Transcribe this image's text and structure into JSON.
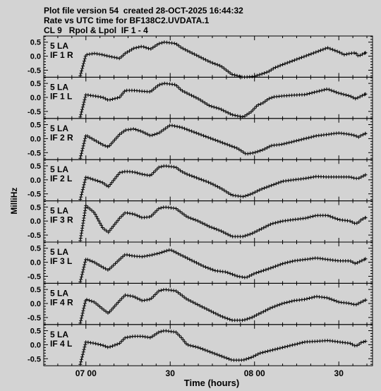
{
  "header": {
    "line1": "Plot file version 54  created 28-OCT-2025 16:44:32",
    "line2": "Rate vs UTC time for BF138C2.UVDATA.1",
    "line3": "CL 9   Rpol & Lpol  IF 1 - 4"
  },
  "chart_data": {
    "type": "scatter",
    "marker": "+",
    "ylabel": "MilliHz",
    "xlabel": "Time (hours)",
    "x_ticks": [
      "07 00",
      "30",
      "08 00",
      "30"
    ],
    "x_tick_values_min": [
      420,
      450,
      480,
      510
    ],
    "xlim_min": [
      405,
      522
    ],
    "ylim": [
      -0.75,
      0.72
    ],
    "y_ticks": [
      "0.5",
      "0.0",
      "-0.5"
    ],
    "panels": [
      {
        "antenna": "5 LA",
        "label": "IF 1 R",
        "t": [
          418,
          420,
          423,
          426,
          428,
          432,
          434,
          437,
          440,
          443,
          446,
          448,
          452,
          454,
          456,
          460,
          464,
          468,
          472,
          476,
          480,
          483,
          485,
          487,
          490,
          494,
          498,
          502,
          506,
          510,
          512,
          514,
          516,
          517,
          518,
          519.5
        ],
        "y": [
          -0.7,
          0.05,
          0.1,
          0.05,
          0.0,
          -0.08,
          0.1,
          0.28,
          0.35,
          0.25,
          0.45,
          0.5,
          0.45,
          0.3,
          0.2,
          0.0,
          -0.2,
          -0.35,
          -0.65,
          -0.75,
          -0.72,
          -0.62,
          -0.55,
          -0.42,
          -0.3,
          -0.15,
          0.0,
          0.15,
          0.3,
          0.15,
          0.05,
          0.1,
          0.12,
          0.0,
          0.05,
          0.12
        ]
      },
      {
        "antenna": "5 LA",
        "label": "IF 1 L",
        "t": [
          418,
          420,
          423,
          426,
          428,
          432,
          434,
          437,
          440,
          443,
          446,
          448,
          452,
          454,
          456,
          460,
          464,
          468,
          472,
          476,
          479,
          481,
          483,
          485,
          487,
          490,
          494,
          498,
          502,
          506,
          510,
          512,
          514,
          516,
          517,
          518,
          519.5
        ],
        "y": [
          -0.7,
          0.1,
          0.05,
          0.0,
          -0.1,
          0.0,
          0.25,
          0.25,
          0.22,
          0.2,
          0.45,
          0.5,
          0.45,
          0.25,
          0.15,
          -0.05,
          -0.3,
          -0.42,
          -0.62,
          -0.7,
          -0.5,
          -0.28,
          -0.2,
          -0.05,
          0.02,
          0.05,
          0.08,
          0.1,
          0.2,
          0.3,
          0.15,
          0.1,
          0.05,
          -0.05,
          0.0,
          0.05,
          0.12
        ]
      },
      {
        "antenna": "5 LA",
        "label": "IF 2 R",
        "t": [
          418,
          420,
          423,
          426,
          428,
          432,
          434,
          437,
          440,
          443,
          446,
          450,
          454,
          458,
          462,
          466,
          470,
          474,
          477,
          480,
          483,
          486,
          490,
          494,
          498,
          502,
          506,
          510,
          514,
          516,
          517,
          518,
          519.5
        ],
        "y": [
          -0.7,
          0.12,
          -0.05,
          -0.22,
          -0.3,
          0.15,
          0.3,
          0.35,
          0.25,
          0.1,
          0.2,
          0.48,
          0.4,
          0.25,
          0.1,
          -0.05,
          -0.2,
          -0.35,
          -0.55,
          -0.5,
          -0.4,
          -0.25,
          -0.2,
          -0.1,
          0.0,
          0.1,
          0.15,
          0.2,
          0.15,
          0.1,
          0.05,
          0.12,
          0.18
        ]
      },
      {
        "antenna": "5 LA",
        "label": "IF 2 L",
        "t": [
          418,
          420,
          423,
          426,
          428,
          432,
          434,
          437,
          440,
          443,
          446,
          448,
          452,
          454,
          456,
          460,
          464,
          468,
          472,
          476,
          479,
          482,
          486,
          490,
          494,
          498,
          502,
          506,
          510,
          514,
          516,
          517,
          518,
          519.5
        ],
        "y": [
          -0.7,
          0.1,
          0.0,
          -0.1,
          -0.25,
          0.25,
          0.3,
          0.28,
          0.2,
          0.15,
          0.45,
          0.5,
          0.45,
          0.3,
          0.2,
          0.05,
          -0.1,
          -0.3,
          -0.55,
          -0.6,
          -0.5,
          -0.35,
          -0.2,
          -0.05,
          0.0,
          0.05,
          0.12,
          0.1,
          0.1,
          0.1,
          0.05,
          0.05,
          0.1,
          0.18
        ]
      },
      {
        "antenna": "5 LA",
        "label": "IF 3 R",
        "t": [
          418,
          420,
          423,
          426,
          428,
          432,
          434,
          437,
          440,
          443,
          446,
          448,
          452,
          454,
          456,
          460,
          464,
          468,
          472,
          476,
          479,
          482,
          486,
          490,
          494,
          498,
          502,
          506,
          510,
          514,
          516,
          517,
          518,
          519.5
        ],
        "y": [
          -0.7,
          0.55,
          0.3,
          -0.25,
          -0.4,
          0.1,
          0.3,
          0.25,
          0.12,
          0.15,
          0.45,
          0.5,
          0.45,
          0.3,
          0.15,
          0.0,
          -0.2,
          -0.35,
          -0.55,
          -0.55,
          -0.45,
          -0.3,
          -0.1,
          0.0,
          0.05,
          0.1,
          0.2,
          0.2,
          0.05,
          0.0,
          -0.1,
          -0.05,
          0.05,
          0.12
        ]
      },
      {
        "antenna": "5 LA",
        "label": "IF 3 L",
        "t": [
          418,
          420,
          423,
          426,
          428,
          432,
          434,
          437,
          440,
          443,
          446,
          450,
          454,
          458,
          462,
          466,
          470,
          474,
          477,
          480,
          483,
          486,
          490,
          494,
          498,
          502,
          506,
          510,
          514,
          516,
          517,
          518,
          519.5
        ],
        "y": [
          -0.7,
          0.12,
          0.0,
          -0.18,
          -0.28,
          0.1,
          0.28,
          0.22,
          0.2,
          0.25,
          0.32,
          0.45,
          0.25,
          0.05,
          -0.15,
          -0.3,
          -0.35,
          -0.5,
          -0.55,
          -0.4,
          -0.3,
          -0.2,
          -0.05,
          0.05,
          0.1,
          0.15,
          0.1,
          0.05,
          0.05,
          -0.05,
          0.0,
          0.05,
          0.12
        ]
      },
      {
        "antenna": "5 LA",
        "label": "IF 4 R",
        "t": [
          418,
          420,
          423,
          426,
          428,
          432,
          434,
          437,
          440,
          443,
          446,
          448,
          452,
          454,
          456,
          460,
          464,
          468,
          472,
          476,
          479,
          482,
          486,
          490,
          494,
          498,
          502,
          506,
          510,
          514,
          516,
          517,
          518,
          519.5
        ],
        "y": [
          -0.7,
          0.15,
          0.05,
          -0.2,
          -0.35,
          0.1,
          0.3,
          0.25,
          0.1,
          0.15,
          0.45,
          0.5,
          0.45,
          0.3,
          0.15,
          -0.05,
          -0.25,
          -0.45,
          -0.6,
          -0.6,
          -0.5,
          -0.35,
          -0.15,
          0.0,
          0.1,
          0.15,
          0.25,
          0.2,
          0.05,
          0.0,
          -0.05,
          0.0,
          0.05,
          0.12
        ]
      },
      {
        "antenna": "5 LA",
        "label": "IF 4 L",
        "t": [
          418,
          420,
          423,
          426,
          428,
          432,
          434,
          437,
          440,
          443,
          446,
          448,
          452,
          454,
          456,
          460,
          464,
          468,
          472,
          476,
          479,
          482,
          486,
          490,
          494,
          498,
          502,
          506,
          510,
          514,
          516,
          517,
          518,
          519.5
        ],
        "y": [
          -0.7,
          0.1,
          0.05,
          -0.02,
          -0.1,
          0.05,
          0.25,
          0.3,
          0.3,
          0.25,
          0.45,
          0.5,
          0.45,
          0.25,
          0.0,
          -0.1,
          -0.25,
          -0.4,
          -0.55,
          -0.55,
          -0.45,
          -0.3,
          -0.2,
          -0.1,
          0.0,
          0.1,
          0.12,
          0.15,
          0.1,
          0.05,
          -0.05,
          0.0,
          0.08,
          0.12
        ]
      }
    ]
  }
}
